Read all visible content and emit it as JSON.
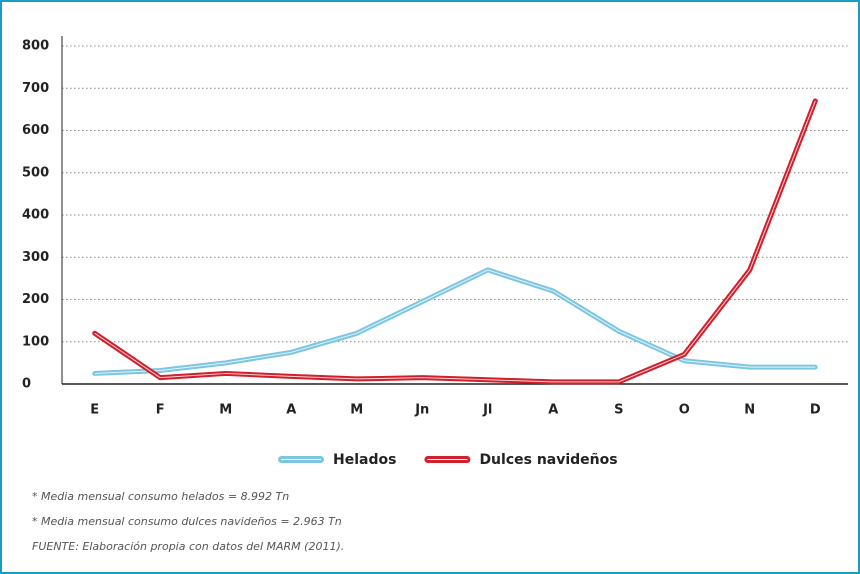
{
  "chart_data": {
    "type": "line",
    "categories": [
      "E",
      "F",
      "M",
      "A",
      "M",
      "Jn",
      "Jl",
      "A",
      "S",
      "O",
      "N",
      "D"
    ],
    "series": [
      {
        "name": "Helados",
        "color": "#7cc6e2",
        "values": [
          25,
          32,
          50,
          75,
          120,
          195,
          270,
          220,
          125,
          55,
          40,
          40
        ]
      },
      {
        "name": "Dulces navideños",
        "color": "#d21f2c",
        "values": [
          120,
          15,
          25,
          18,
          12,
          15,
          10,
          5,
          5,
          70,
          270,
          670
        ]
      }
    ],
    "ylim": [
      0,
      800
    ],
    "yticks": [
      0,
      100,
      200,
      300,
      400,
      500,
      600,
      700,
      800
    ],
    "grid": true,
    "notes": [
      "* Media mensual consumo helados = 8.992 Tn",
      "* Media mensual consumo dulces navideños = 2.963 Tn",
      "FUENTE: Elaboración propia con datos del MARM (2011)."
    ]
  }
}
